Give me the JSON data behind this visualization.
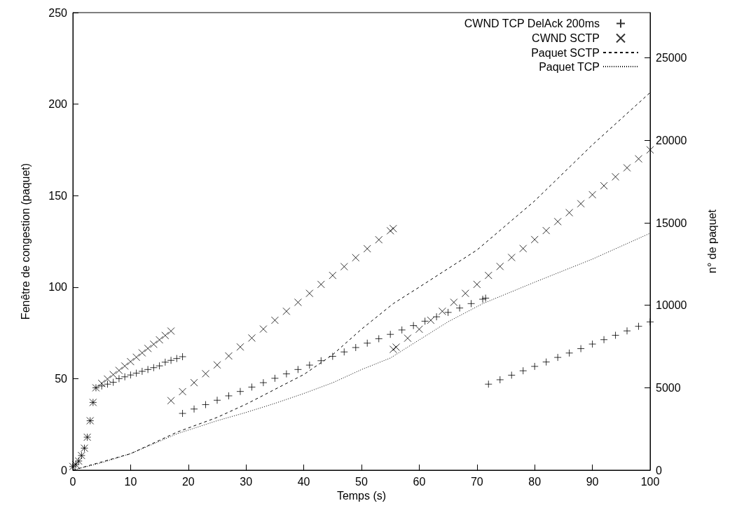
{
  "chart_data": {
    "type": "scatter",
    "xlabel": "Temps (s)",
    "ylabel": "Fenêtre de congestion (paquet)",
    "y2label": "n° de paquet",
    "xlim": [
      0,
      100
    ],
    "xticks": [
      0,
      10,
      20,
      30,
      40,
      50,
      60,
      70,
      80,
      90,
      100
    ],
    "ylim": [
      0,
      250
    ],
    "yticks": [
      0,
      50,
      100,
      150,
      200,
      250
    ],
    "y2lim": [
      0,
      27750
    ],
    "y2ticks": [
      0,
      5000,
      10000,
      15000,
      20000,
      25000
    ],
    "grid": false,
    "legend": "top right",
    "series": [
      {
        "name": "CWND TCP DelAck 200ms",
        "marker": "plus",
        "color": "#000000",
        "x": [
          0,
          0.5,
          1,
          1.5,
          2,
          2.5,
          3,
          3.5,
          4,
          5,
          6,
          7,
          8,
          9,
          10,
          11,
          12,
          13,
          14,
          15,
          16,
          17,
          18,
          19,
          19,
          21,
          23,
          25,
          27,
          29,
          31,
          33,
          35,
          37,
          39,
          41,
          43,
          45,
          47,
          49,
          51,
          53,
          55,
          57,
          59,
          61,
          63,
          65,
          67,
          69,
          71,
          71.5,
          72,
          74,
          76,
          78,
          80,
          82,
          84,
          86,
          88,
          90,
          92,
          94,
          96,
          98,
          100
        ],
        "values": [
          2,
          3,
          5,
          8,
          12,
          18,
          27,
          37,
          45,
          46,
          47,
          48,
          50,
          51,
          52,
          53,
          54,
          55,
          56,
          57,
          59,
          60,
          61,
          62,
          31,
          33.4,
          35.8,
          38.2,
          40.6,
          43,
          45.4,
          47.8,
          50.2,
          52.6,
          55,
          57.4,
          59.8,
          62.2,
          64.6,
          67,
          69.4,
          71.8,
          74.2,
          76.6,
          79,
          81.4,
          83.8,
          86.2,
          88.6,
          91,
          93.4,
          94,
          47,
          49.4,
          51.9,
          54.3,
          56.7,
          59.1,
          61.6,
          64,
          66.4,
          68.9,
          71.3,
          73.7,
          76.1,
          78.6,
          81
        ]
      },
      {
        "name": "CWND SCTP",
        "marker": "cross",
        "color": "#000000",
        "x": [
          0,
          0.5,
          1,
          1.5,
          2,
          2.5,
          3,
          3.5,
          4,
          5,
          6,
          7,
          8,
          9,
          10,
          11,
          12,
          13,
          14,
          15,
          16,
          17,
          17,
          19,
          21,
          23,
          25,
          27,
          29,
          31,
          33,
          35,
          37,
          39,
          41,
          43,
          45,
          47,
          49,
          51,
          53,
          55,
          55.5,
          55.5,
          56,
          58,
          60,
          62,
          64,
          66,
          68,
          70,
          72,
          74,
          76,
          78,
          80,
          82,
          84,
          86,
          88,
          90,
          92,
          94,
          96,
          98,
          100
        ],
        "values": [
          2,
          3,
          5,
          8,
          12,
          18,
          27,
          37,
          45,
          47.4,
          49.8,
          52.2,
          54.5,
          56.9,
          59.3,
          61.7,
          64.1,
          66.5,
          68.8,
          71.2,
          73.6,
          76,
          38,
          42.9,
          47.8,
          52.7,
          57.5,
          62.4,
          67.3,
          72.2,
          77.1,
          81.9,
          86.8,
          91.7,
          96.6,
          101.5,
          106.4,
          111.2,
          116.1,
          121,
          125.9,
          130.8,
          132,
          66,
          67.2,
          72.1,
          77,
          81.9,
          86.8,
          91.7,
          96.6,
          101.5,
          106.4,
          111.3,
          116.2,
          121.1,
          126,
          130.9,
          135.8,
          140.7,
          145.6,
          150.5,
          155.4,
          160.3,
          165.2,
          170.1,
          175
        ]
      },
      {
        "name": "Paquet SCTP",
        "type": "line",
        "axis": "y2",
        "marker": "none",
        "line_style": "dashed",
        "color": "#000000",
        "x": [
          0,
          5,
          10,
          18,
          25,
          30,
          35,
          40,
          45,
          50,
          55.5,
          60,
          70,
          80,
          90,
          100
        ],
        "values": [
          0,
          500,
          1000,
          2300,
          3200,
          4000,
          4900,
          5800,
          7000,
          8550,
          10100,
          11100,
          13350,
          16330,
          19730,
          22900
        ]
      },
      {
        "name": "Paquet TCP",
        "type": "line",
        "axis": "y2",
        "marker": "none",
        "line_style": "dotted",
        "color": "#000000",
        "x": [
          0,
          5,
          10,
          18,
          25,
          30,
          35,
          40,
          45,
          50,
          55,
          60,
          65,
          71,
          80,
          90,
          100
        ],
        "values": [
          0,
          450,
          1000,
          2200,
          3000,
          3500,
          4050,
          4650,
          5300,
          6100,
          6800,
          7900,
          9000,
          10100,
          11400,
          12800,
          14370
        ]
      }
    ]
  }
}
